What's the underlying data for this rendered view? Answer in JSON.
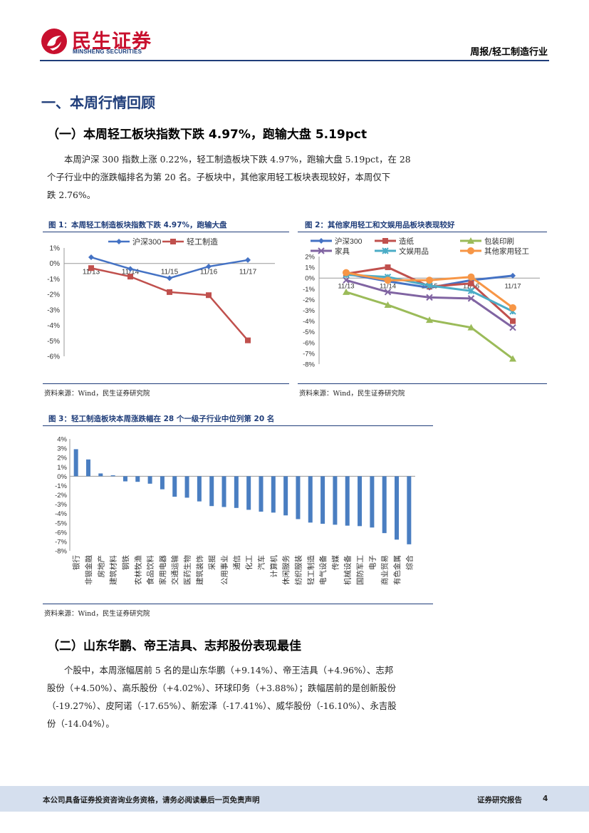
{
  "header": {
    "brand_cn": "民生证券",
    "brand_en": "MINSHENG SECURITIES",
    "report_type": "周报/轻工制造行业"
  },
  "section1": {
    "title": "一、本周行情回顾",
    "sub1_title": "（一）本周轻工板块指数下跌 4.97%，跑输大盘 5.19pct",
    "paragraph_lines": [
      "本周沪深 300 指数上涨 0.22%，轻工制造板块下跌 4.97%，跑输大盘 5.19pct，在 28",
      "个子行业中的涨跌幅排名为第 20 名。子板块中，其他家用轻工板块表现较好，本周仅下",
      "跌 2.76%。"
    ]
  },
  "figure1": {
    "title": "图 1：本周轻工制造板块指数下跌 4.97%，跑输大盘",
    "source": "资料来源：Wind，民生证券研究院"
  },
  "figure2": {
    "title": "图 2：其他家用轻工和文娱用品板块表现较好",
    "source": "资料来源：Wind，民生证券研究院"
  },
  "figure3": {
    "title": "图 3：轻工制造板块本周涨跌幅在 28 个一级子行业中位列第 20 名",
    "source": "资料来源：Wind，民生证券研究院"
  },
  "section2": {
    "title": "（二）山东华鹏、帝王洁具、志邦股份表现最佳",
    "paragraph_lines": [
      "个股中，本周涨幅居前 5 名的是山东华鹏（+9.14%）、帝王洁具（+4.96%）、志邦",
      "股份（+4.50%）、高乐股份（+4.02%）、环球印务（+3.88%）；跌幅居前的是创新股份",
      "（-19.27%）、皮阿诺（-17.65%）、新宏泽（-17.41%）、威华股份（-16.10%）、永吉股",
      "份（-14.04%）。"
    ]
  },
  "footer": {
    "disclaimer": "本公司具备证券投资咨询业务资格，请务必阅读最后一页免责声明",
    "report_label": "证券研究报告",
    "page_number": "4"
  },
  "chart_data": [
    {
      "type": "line",
      "x": [
        "11/13",
        "11/14",
        "11/15",
        "11/16",
        "11/17"
      ],
      "series": [
        {
          "name": "沪深300",
          "values": [
            0.4,
            -0.35,
            -0.95,
            -0.2,
            0.22
          ],
          "color": "#4472c4"
        },
        {
          "name": "轻工制造",
          "values": [
            -0.3,
            -0.85,
            -1.85,
            -2.05,
            -4.97
          ],
          "color": "#c0504d"
        }
      ],
      "ylim": [
        -6,
        1
      ],
      "yticks": [
        "1%",
        "0%",
        "-1%",
        "-2%",
        "-3%",
        "-4%",
        "-5%",
        "-6%"
      ],
      "legend": "top"
    },
    {
      "type": "line",
      "x": [
        "11/13",
        "11/14",
        "11/15",
        "11/16",
        "11/17"
      ],
      "series": [
        {
          "name": "沪深300",
          "values": [
            0.4,
            -0.3,
            -0.9,
            -0.2,
            0.22
          ],
          "color": "#4472c4"
        },
        {
          "name": "造纸",
          "values": [
            0.4,
            1.0,
            -0.8,
            -0.5,
            -4.0
          ],
          "color": "#c0504d"
        },
        {
          "name": "包装印刷",
          "values": [
            -1.3,
            -2.5,
            -3.9,
            -4.6,
            -7.5
          ],
          "color": "#9bbb59"
        },
        {
          "name": "家具",
          "values": [
            -0.2,
            -1.3,
            -1.8,
            -1.9,
            -4.6
          ],
          "color": "#8064a2"
        },
        {
          "name": "文娱用品",
          "values": [
            0.3,
            0.1,
            -0.7,
            -1.2,
            -3.1
          ],
          "color": "#4bacc6"
        },
        {
          "name": "其他家用轻工",
          "values": [
            0.5,
            -0.2,
            -0.2,
            0.1,
            -2.76
          ],
          "color": "#f79646"
        }
      ],
      "ylim": [
        -8,
        2
      ],
      "yticks": [
        "2%",
        "1%",
        "0%",
        "-1%",
        "-2%",
        "-3%",
        "-4%",
        "-5%",
        "-6%",
        "-7%",
        "-8%"
      ],
      "legend": "top"
    },
    {
      "type": "bar",
      "categories": [
        "银行",
        "非银金融",
        "房地产",
        "建筑材料",
        "钢铁",
        "农林牧渔",
        "食品饮料",
        "家用电器",
        "交通运输",
        "医药生物",
        "建筑装饰",
        "采掘",
        "公用事业",
        "通信",
        "化工",
        "汽车",
        "计算机",
        "休闲服务",
        "纺织服装",
        "轻工制造",
        "电气设备",
        "传媒",
        "机械设备",
        "国防军工",
        "电子",
        "商业贸易",
        "有色金属",
        "综合"
      ],
      "values": [
        2.9,
        1.8,
        0.3,
        0.1,
        -0.55,
        -0.6,
        -0.8,
        -1.4,
        -2.2,
        -2.3,
        -2.7,
        -3.2,
        -3.3,
        -3.4,
        -3.6,
        -3.8,
        -3.9,
        -4.2,
        -4.6,
        -4.97,
        -5.1,
        -5.2,
        -5.3,
        -5.35,
        -5.5,
        -6.1,
        -6.8,
        -7.3
      ],
      "ylim": [
        -8,
        4
      ],
      "yticks": [
        "4%",
        "3%",
        "2%",
        "1%",
        "0%",
        "-1%",
        "-2%",
        "-3%",
        "-4%",
        "-5%",
        "-6%",
        "-7%",
        "-8%"
      ],
      "color": "#4a7ec1"
    }
  ]
}
